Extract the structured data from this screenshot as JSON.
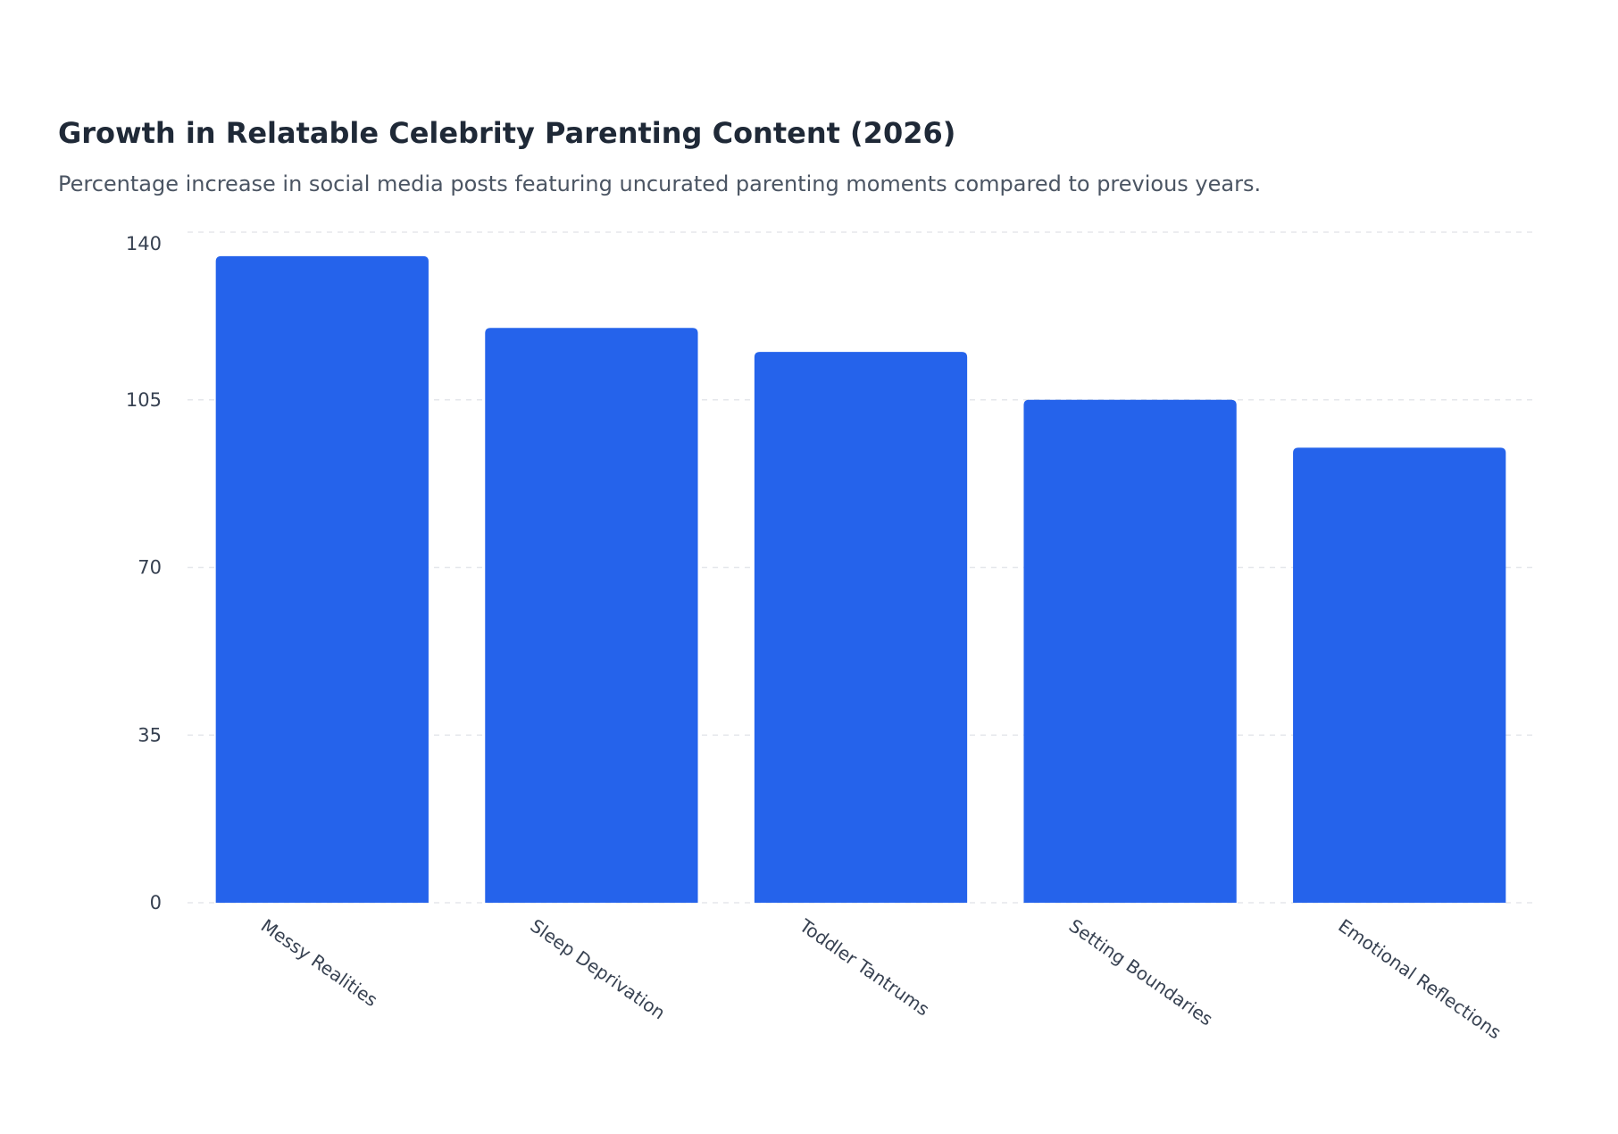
{
  "chart_data": {
    "type": "bar",
    "title": "Growth in Relatable Celebrity Parenting Content (2026)",
    "subtitle": "Percentage increase in social media posts featuring uncurated parenting moments compared to previous years.",
    "categories": [
      "Messy Realities",
      "Sleep Deprivation",
      "Toddler Tantrums",
      "Setting Boundaries",
      "Emotional Reflections"
    ],
    "values": [
      135,
      120,
      115,
      105,
      95
    ],
    "xlabel": "",
    "ylabel": "",
    "ylim": [
      0,
      140
    ],
    "yticks": [
      0,
      35,
      70,
      105,
      140
    ],
    "grid": true,
    "grid_style": "dashed horizontal",
    "legend": "none",
    "bar_color": "#2563eb"
  }
}
